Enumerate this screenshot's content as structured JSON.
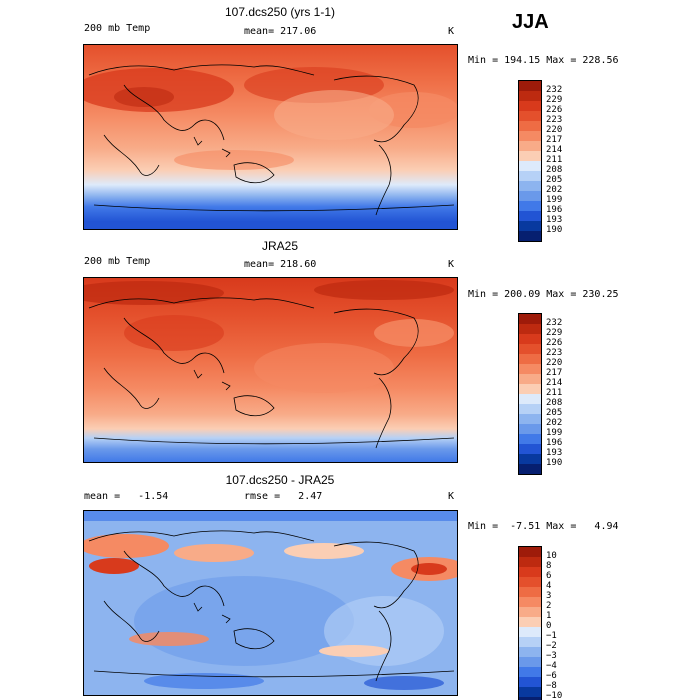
{
  "season": "JJA",
  "panels": [
    {
      "title": "107.dcs250 (yrs 1-1)",
      "left_label": "200 mb Temp",
      "center_label": "mean= 217.06",
      "units": "K",
      "min_max": "Min = 194.15 Max = 228.56",
      "colorbar_labels": [
        "232",
        "229",
        "226",
        "223",
        "220",
        "217",
        "214",
        "211",
        "208",
        "205",
        "202",
        "199",
        "196",
        "193",
        "190"
      ],
      "colorbar_colors": [
        "#9e1b0a",
        "#bd2a10",
        "#d83a1c",
        "#e4502c",
        "#ee6c44",
        "#f58a63",
        "#f8ab88",
        "#fbceb4",
        "#ddeafb",
        "#b6d1f6",
        "#8db4ef",
        "#6a99ea",
        "#4179e8",
        "#2254d4",
        "#08399f",
        "#061f70"
      ]
    },
    {
      "title": "JRA25",
      "left_label": "200 mb Temp",
      "center_label": "mean= 218.60",
      "units": "K",
      "min_max": "Min = 200.09 Max = 230.25",
      "colorbar_labels": [
        "232",
        "229",
        "226",
        "223",
        "220",
        "217",
        "214",
        "211",
        "208",
        "205",
        "202",
        "199",
        "196",
        "193",
        "190"
      ],
      "colorbar_colors": [
        "#9e1b0a",
        "#bd2a10",
        "#d83a1c",
        "#e4502c",
        "#ee6c44",
        "#f58a63",
        "#f8ab88",
        "#fbceb4",
        "#ddeafb",
        "#b6d1f6",
        "#8db4ef",
        "#6a99ea",
        "#4179e8",
        "#2254d4",
        "#08399f",
        "#061f70"
      ]
    },
    {
      "title": "107.dcs250 - JRA25",
      "left_label": "mean =   -1.54",
      "center_label": "rmse =   2.47",
      "units": "K",
      "min_max": "Min =  -7.51 Max =   4.94",
      "colorbar_labels": [
        "10",
        "8",
        "6",
        "4",
        "3",
        "2",
        "1",
        "0",
        "−1",
        "−2",
        "−3",
        "−4",
        "−6",
        "−8",
        "−10"
      ],
      "colorbar_colors": [
        "#9e1b0a",
        "#bd2a10",
        "#d83a1c",
        "#e4502c",
        "#ee6c44",
        "#f58a63",
        "#f8ab88",
        "#fbceb4",
        "#ddeafb",
        "#b6d1f6",
        "#8db4ef",
        "#6a99ea",
        "#4179e8",
        "#2254d4",
        "#08399f",
        "#061f70"
      ]
    }
  ],
  "chart_data": {
    "type": "heatmap",
    "title": "JJA",
    "variable": "200 mb Temp",
    "units": "K",
    "maps": [
      {
        "name": "107.dcs250 (yrs 1-1)",
        "mean": 217.06,
        "min": 194.15,
        "max": 228.56,
        "levels": [
          190,
          193,
          196,
          199,
          202,
          205,
          208,
          211,
          214,
          217,
          220,
          223,
          226,
          229,
          232
        ]
      },
      {
        "name": "JRA25",
        "mean": 218.6,
        "min": 200.09,
        "max": 230.25,
        "levels": [
          190,
          193,
          196,
          199,
          202,
          205,
          208,
          211,
          214,
          217,
          220,
          223,
          226,
          229,
          232
        ]
      },
      {
        "name": "107.dcs250 - JRA25",
        "mean": -1.54,
        "rmse": 2.47,
        "min": -7.51,
        "max": 4.94,
        "levels": [
          -10,
          -8,
          -6,
          -4,
          -3,
          -2,
          -1,
          0,
          1,
          2,
          3,
          4,
          6,
          8,
          10
        ]
      }
    ]
  }
}
